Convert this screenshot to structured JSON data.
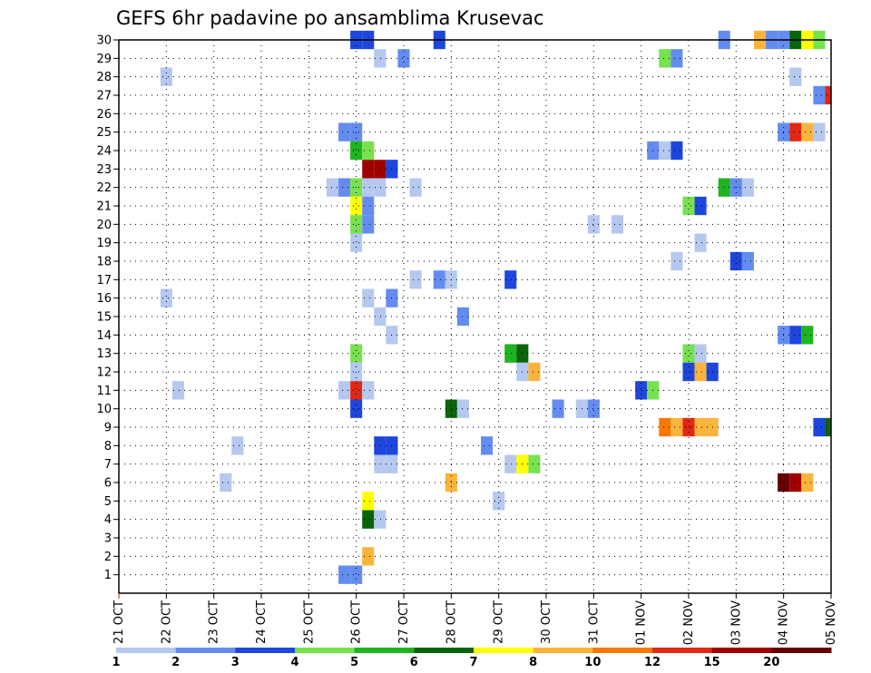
{
  "chart_data": {
    "type": "heatmap",
    "title": "GEFS 6hr padavine po ansamblima Krusevac",
    "x_tick_labels": [
      "21 OCT",
      "22 OCT",
      "23 OCT",
      "24 OCT",
      "25 OCT",
      "26 OCT",
      "27 OCT",
      "28 OCT",
      "29 OCT",
      "30 OCT",
      "31 OCT",
      "01 NOV",
      "02 NOV",
      "03 NOV",
      "04 NOV",
      "05 NOV"
    ],
    "y_tick_labels": [
      "1",
      "2",
      "3",
      "4",
      "5",
      "6",
      "7",
      "8",
      "9",
      "10",
      "11",
      "12",
      "13",
      "14",
      "15",
      "16",
      "17",
      "18",
      "19",
      "20",
      "21",
      "22",
      "23",
      "24",
      "25",
      "26",
      "27",
      "28",
      "29",
      "30"
    ],
    "x_unit": "day index from 21 OCT (0.25 = 6 h)",
    "xlim": [
      0,
      15
    ],
    "ylim": [
      0,
      30
    ],
    "grid": true,
    "colorbar": {
      "labels": [
        "1",
        "2",
        "3",
        "4",
        "5",
        "6",
        "7",
        "8",
        "10",
        "12",
        "15",
        "20"
      ],
      "colors": [
        "#b4c8f0",
        "#648cf0",
        "#1e46dc",
        "#78e150",
        "#1eb41e",
        "#0a640a",
        "#ffff00",
        "#fab43c",
        "#fa7800",
        "#e12814",
        "#a00000",
        "#640000"
      ]
    },
    "cells": [
      {
        "m": 30,
        "t": 5.0,
        "c": "#1e46dc"
      },
      {
        "m": 30,
        "t": 5.25,
        "c": "#1e46dc"
      },
      {
        "m": 30,
        "t": 6.75,
        "c": "#1e46dc"
      },
      {
        "m": 30,
        "t": 12.75,
        "c": "#648cf0"
      },
      {
        "m": 30,
        "t": 13.5,
        "c": "#fab43c"
      },
      {
        "m": 30,
        "t": 13.75,
        "c": "#648cf0"
      },
      {
        "m": 30,
        "t": 14.0,
        "c": "#648cf0"
      },
      {
        "m": 30,
        "t": 14.25,
        "c": "#0a640a"
      },
      {
        "m": 30,
        "t": 14.5,
        "c": "#ffff00"
      },
      {
        "m": 30,
        "t": 14.75,
        "c": "#78e150"
      },
      {
        "m": 29,
        "t": 5.5,
        "c": "#b4c8f0"
      },
      {
        "m": 29,
        "t": 6.0,
        "c": "#648cf0"
      },
      {
        "m": 29,
        "t": 11.5,
        "c": "#78e150"
      },
      {
        "m": 29,
        "t": 11.75,
        "c": "#648cf0"
      },
      {
        "m": 28,
        "t": 1.0,
        "c": "#b4c8f0"
      },
      {
        "m": 28,
        "t": 14.25,
        "c": "#b4c8f0"
      },
      {
        "m": 27,
        "t": 14.75,
        "c": "#648cf0"
      },
      {
        "m": 27,
        "t": 15.0,
        "c": "#e12814"
      },
      {
        "m": 25,
        "t": 4.75,
        "c": "#648cf0"
      },
      {
        "m": 25,
        "t": 5.0,
        "c": "#648cf0"
      },
      {
        "m": 25,
        "t": 14.0,
        "c": "#648cf0"
      },
      {
        "m": 25,
        "t": 14.25,
        "c": "#e12814"
      },
      {
        "m": 25,
        "t": 14.5,
        "c": "#fab43c"
      },
      {
        "m": 25,
        "t": 14.75,
        "c": "#b4c8f0"
      },
      {
        "m": 24,
        "t": 5.0,
        "c": "#1eb41e"
      },
      {
        "m": 24,
        "t": 5.25,
        "c": "#78e150"
      },
      {
        "m": 24,
        "t": 11.25,
        "c": "#648cf0"
      },
      {
        "m": 24,
        "t": 11.5,
        "c": "#b4c8f0"
      },
      {
        "m": 24,
        "t": 11.75,
        "c": "#1e46dc"
      },
      {
        "m": 23,
        "t": 5.25,
        "c": "#a00000"
      },
      {
        "m": 23,
        "t": 5.5,
        "c": "#a00000"
      },
      {
        "m": 23,
        "t": 5.75,
        "c": "#1e46dc"
      },
      {
        "m": 22,
        "t": 4.5,
        "c": "#b4c8f0"
      },
      {
        "m": 22,
        "t": 4.75,
        "c": "#648cf0"
      },
      {
        "m": 22,
        "t": 5.0,
        "c": "#78e150"
      },
      {
        "m": 22,
        "t": 5.25,
        "c": "#b4c8f0"
      },
      {
        "m": 22,
        "t": 5.5,
        "c": "#b4c8f0"
      },
      {
        "m": 22,
        "t": 6.25,
        "c": "#b4c8f0"
      },
      {
        "m": 22,
        "t": 12.75,
        "c": "#1eb41e"
      },
      {
        "m": 22,
        "t": 13.0,
        "c": "#648cf0"
      },
      {
        "m": 22,
        "t": 13.25,
        "c": "#b4c8f0"
      },
      {
        "m": 21,
        "t": 5.0,
        "c": "#ffff00"
      },
      {
        "m": 21,
        "t": 5.25,
        "c": "#648cf0"
      },
      {
        "m": 21,
        "t": 12.0,
        "c": "#78e150"
      },
      {
        "m": 21,
        "t": 12.25,
        "c": "#1e46dc"
      },
      {
        "m": 20,
        "t": 5.0,
        "c": "#78e150"
      },
      {
        "m": 20,
        "t": 5.25,
        "c": "#648cf0"
      },
      {
        "m": 20,
        "t": 10.0,
        "c": "#b4c8f0"
      },
      {
        "m": 20,
        "t": 10.5,
        "c": "#b4c8f0"
      },
      {
        "m": 19,
        "t": 5.0,
        "c": "#b4c8f0"
      },
      {
        "m": 19,
        "t": 12.25,
        "c": "#b4c8f0"
      },
      {
        "m": 18,
        "t": 11.75,
        "c": "#b4c8f0"
      },
      {
        "m": 18,
        "t": 13.0,
        "c": "#1e46dc"
      },
      {
        "m": 18,
        "t": 13.25,
        "c": "#648cf0"
      },
      {
        "m": 17,
        "t": 6.25,
        "c": "#b4c8f0"
      },
      {
        "m": 17,
        "t": 6.75,
        "c": "#648cf0"
      },
      {
        "m": 17,
        "t": 7.0,
        "c": "#b4c8f0"
      },
      {
        "m": 17,
        "t": 8.25,
        "c": "#1e46dc"
      },
      {
        "m": 16,
        "t": 1.0,
        "c": "#b4c8f0"
      },
      {
        "m": 16,
        "t": 5.25,
        "c": "#b4c8f0"
      },
      {
        "m": 16,
        "t": 5.75,
        "c": "#648cf0"
      },
      {
        "m": 15,
        "t": 5.5,
        "c": "#b4c8f0"
      },
      {
        "m": 15,
        "t": 7.25,
        "c": "#648cf0"
      },
      {
        "m": 14,
        "t": 5.75,
        "c": "#b4c8f0"
      },
      {
        "m": 14,
        "t": 14.0,
        "c": "#648cf0"
      },
      {
        "m": 14,
        "t": 14.25,
        "c": "#1e46dc"
      },
      {
        "m": 14,
        "t": 14.5,
        "c": "#1eb41e"
      },
      {
        "m": 13,
        "t": 5.0,
        "c": "#78e150"
      },
      {
        "m": 13,
        "t": 8.25,
        "c": "#1eb41e"
      },
      {
        "m": 13,
        "t": 8.5,
        "c": "#0a640a"
      },
      {
        "m": 13,
        "t": 12.0,
        "c": "#78e150"
      },
      {
        "m": 13,
        "t": 12.25,
        "c": "#b4c8f0"
      },
      {
        "m": 12,
        "t": 5.0,
        "c": "#b4c8f0"
      },
      {
        "m": 12,
        "t": 8.5,
        "c": "#b4c8f0"
      },
      {
        "m": 12,
        "t": 8.75,
        "c": "#fab43c"
      },
      {
        "m": 12,
        "t": 12.0,
        "c": "#1e46dc"
      },
      {
        "m": 12,
        "t": 12.25,
        "c": "#fab43c"
      },
      {
        "m": 12,
        "t": 12.5,
        "c": "#1e46dc"
      },
      {
        "m": 11,
        "t": 1.25,
        "c": "#b4c8f0"
      },
      {
        "m": 11,
        "t": 4.75,
        "c": "#b4c8f0"
      },
      {
        "m": 11,
        "t": 5.0,
        "c": "#e12814"
      },
      {
        "m": 11,
        "t": 5.25,
        "c": "#b4c8f0"
      },
      {
        "m": 11,
        "t": 11.0,
        "c": "#1e46dc"
      },
      {
        "m": 11,
        "t": 11.25,
        "c": "#78e150"
      },
      {
        "m": 10,
        "t": 5.0,
        "c": "#1e46dc"
      },
      {
        "m": 10,
        "t": 7.0,
        "c": "#0a640a"
      },
      {
        "m": 10,
        "t": 7.25,
        "c": "#b4c8f0"
      },
      {
        "m": 10,
        "t": 9.25,
        "c": "#648cf0"
      },
      {
        "m": 10,
        "t": 9.75,
        "c": "#b4c8f0"
      },
      {
        "m": 10,
        "t": 10.0,
        "c": "#648cf0"
      },
      {
        "m": 9,
        "t": 11.5,
        "c": "#fa7800"
      },
      {
        "m": 9,
        "t": 11.75,
        "c": "#fab43c"
      },
      {
        "m": 9,
        "t": 12.0,
        "c": "#e12814"
      },
      {
        "m": 9,
        "t": 12.25,
        "c": "#fab43c"
      },
      {
        "m": 9,
        "t": 12.5,
        "c": "#fab43c"
      },
      {
        "m": 9,
        "t": 14.75,
        "c": "#1e46dc"
      },
      {
        "m": 9,
        "t": 15.0,
        "c": "#0a640a"
      },
      {
        "m": 8,
        "t": 2.5,
        "c": "#b4c8f0"
      },
      {
        "m": 8,
        "t": 5.5,
        "c": "#1e46dc"
      },
      {
        "m": 8,
        "t": 5.75,
        "c": "#1e46dc"
      },
      {
        "m": 8,
        "t": 7.75,
        "c": "#648cf0"
      },
      {
        "m": 7,
        "t": 5.5,
        "c": "#b4c8f0"
      },
      {
        "m": 7,
        "t": 5.75,
        "c": "#b4c8f0"
      },
      {
        "m": 7,
        "t": 8.25,
        "c": "#b4c8f0"
      },
      {
        "m": 7,
        "t": 8.5,
        "c": "#ffff00"
      },
      {
        "m": 7,
        "t": 8.75,
        "c": "#78e150"
      },
      {
        "m": 6,
        "t": 2.25,
        "c": "#b4c8f0"
      },
      {
        "m": 6,
        "t": 7.0,
        "c": "#fab43c"
      },
      {
        "m": 6,
        "t": 14.0,
        "c": "#640000"
      },
      {
        "m": 6,
        "t": 14.25,
        "c": "#a00000"
      },
      {
        "m": 6,
        "t": 14.5,
        "c": "#fab43c"
      },
      {
        "m": 5,
        "t": 5.25,
        "c": "#ffff00"
      },
      {
        "m": 5,
        "t": 8.0,
        "c": "#b4c8f0"
      },
      {
        "m": 4,
        "t": 5.25,
        "c": "#0a640a"
      },
      {
        "m": 4,
        "t": 5.5,
        "c": "#b4c8f0"
      },
      {
        "m": 2,
        "t": 5.25,
        "c": "#fab43c"
      },
      {
        "m": 1,
        "t": 4.75,
        "c": "#648cf0"
      },
      {
        "m": 1,
        "t": 5.0,
        "c": "#648cf0"
      }
    ]
  }
}
